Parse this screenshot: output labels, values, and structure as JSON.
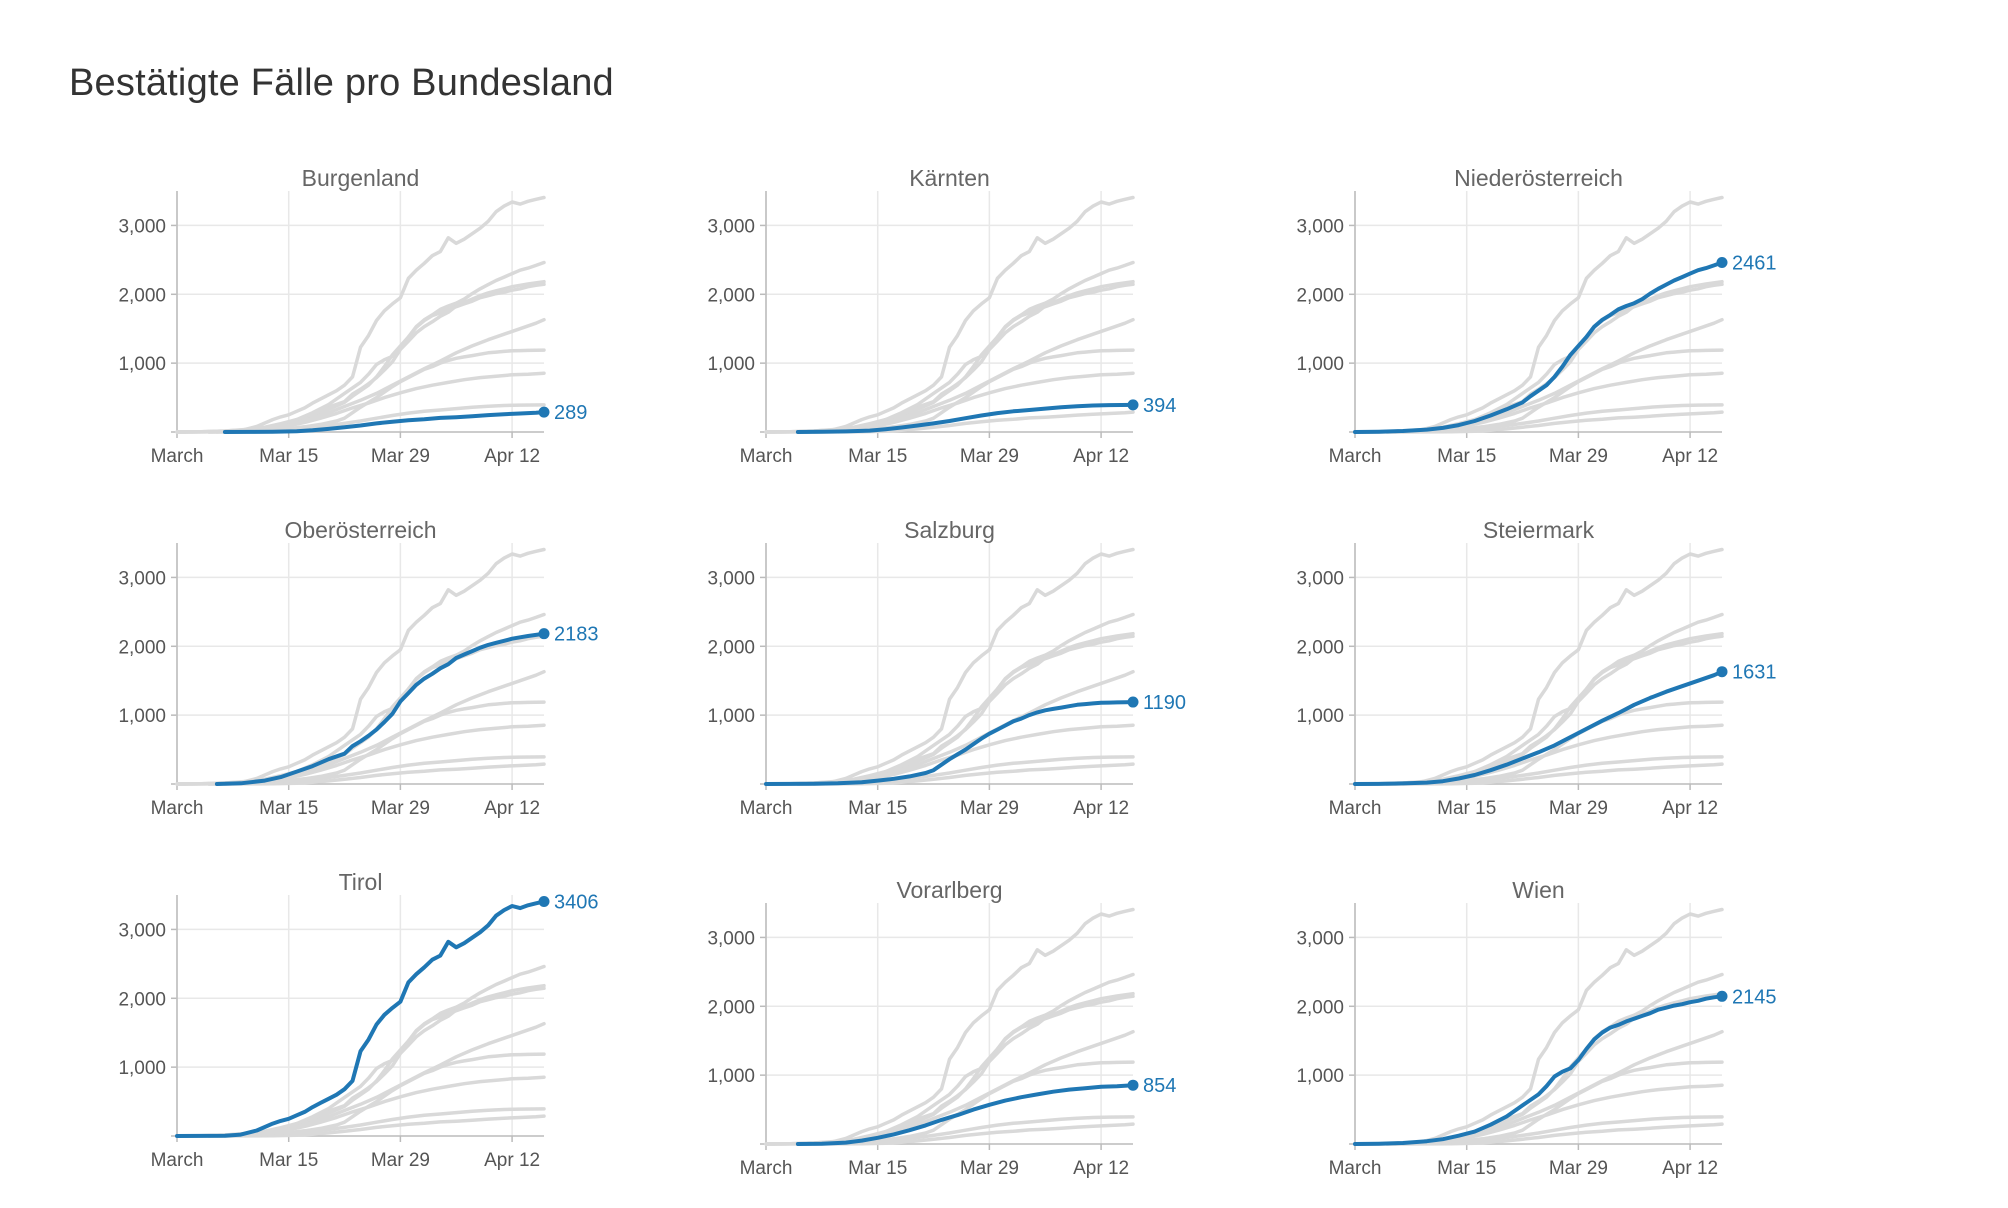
{
  "page": {
    "title": "Bestätigte Fälle pro Bundesland"
  },
  "colors": {
    "highlight": "#1f77b4",
    "context": "#d9d9d9",
    "gridline": "#e8e8e8",
    "axis": "#bbbbbb"
  },
  "chart_data": {
    "type": "line",
    "layout": "small-multiples 3x3",
    "x_unit": "day of year 2020",
    "x_ticks": [
      {
        "x": 1,
        "label": "March"
      },
      {
        "x": 15,
        "label": "Mar 15"
      },
      {
        "x": 29,
        "label": "Mar 29"
      },
      {
        "x": 43,
        "label": "Apr 12"
      }
    ],
    "xlim": [
      1,
      47
    ],
    "ylim": [
      0,
      3500
    ],
    "y_ticks": [
      {
        "y": 1000,
        "label": "1,000"
      },
      {
        "y": 2000,
        "label": "2,000"
      },
      {
        "y": 3000,
        "label": "3,000"
      }
    ],
    "grid": true,
    "series": [
      {
        "name": "Burgenland",
        "end_label": "289",
        "points": [
          [
            7,
            0
          ],
          [
            10,
            2
          ],
          [
            13,
            5
          ],
          [
            16,
            12
          ],
          [
            18,
            25
          ],
          [
            20,
            45
          ],
          [
            22,
            70
          ],
          [
            24,
            95
          ],
          [
            26,
            125
          ],
          [
            28,
            150
          ],
          [
            30,
            170
          ],
          [
            32,
            185
          ],
          [
            34,
            205
          ],
          [
            36,
            215
          ],
          [
            38,
            230
          ],
          [
            40,
            245
          ],
          [
            42,
            258
          ],
          [
            44,
            268
          ],
          [
            46,
            280
          ],
          [
            47,
            289
          ]
        ]
      },
      {
        "name": "Kärnten",
        "end_label": "394",
        "points": [
          [
            5,
            0
          ],
          [
            8,
            3
          ],
          [
            11,
            8
          ],
          [
            14,
            20
          ],
          [
            16,
            40
          ],
          [
            18,
            65
          ],
          [
            20,
            95
          ],
          [
            22,
            125
          ],
          [
            24,
            160
          ],
          [
            26,
            200
          ],
          [
            28,
            240
          ],
          [
            30,
            275
          ],
          [
            32,
            300
          ],
          [
            34,
            320
          ],
          [
            36,
            340
          ],
          [
            38,
            360
          ],
          [
            40,
            375
          ],
          [
            42,
            385
          ],
          [
            44,
            390
          ],
          [
            47,
            394
          ]
        ]
      },
      {
        "name": "Niederösterreich",
        "end_label": "2461",
        "points": [
          [
            1,
            0
          ],
          [
            4,
            5
          ],
          [
            7,
            15
          ],
          [
            10,
            35
          ],
          [
            12,
            60
          ],
          [
            14,
            100
          ],
          [
            16,
            160
          ],
          [
            18,
            240
          ],
          [
            20,
            330
          ],
          [
            22,
            430
          ],
          [
            23,
            520
          ],
          [
            24,
            600
          ],
          [
            25,
            680
          ],
          [
            26,
            800
          ],
          [
            27,
            950
          ],
          [
            28,
            1120
          ],
          [
            29,
            1250
          ],
          [
            30,
            1380
          ],
          [
            31,
            1530
          ],
          [
            32,
            1630
          ],
          [
            33,
            1700
          ],
          [
            34,
            1780
          ],
          [
            35,
            1830
          ],
          [
            36,
            1870
          ],
          [
            37,
            1930
          ],
          [
            38,
            2010
          ],
          [
            39,
            2080
          ],
          [
            40,
            2140
          ],
          [
            41,
            2200
          ],
          [
            42,
            2250
          ],
          [
            43,
            2300
          ],
          [
            44,
            2350
          ],
          [
            45,
            2380
          ],
          [
            46,
            2420
          ],
          [
            47,
            2461
          ]
        ]
      },
      {
        "name": "Oberösterreich",
        "end_label": "2183",
        "points": [
          [
            6,
            0
          ],
          [
            9,
            10
          ],
          [
            12,
            50
          ],
          [
            14,
            100
          ],
          [
            16,
            180
          ],
          [
            18,
            260
          ],
          [
            20,
            360
          ],
          [
            22,
            440
          ],
          [
            23,
            550
          ],
          [
            24,
            620
          ],
          [
            25,
            700
          ],
          [
            26,
            790
          ],
          [
            27,
            900
          ],
          [
            28,
            1020
          ],
          [
            29,
            1200
          ],
          [
            30,
            1320
          ],
          [
            31,
            1440
          ],
          [
            32,
            1530
          ],
          [
            33,
            1600
          ],
          [
            34,
            1680
          ],
          [
            35,
            1740
          ],
          [
            36,
            1830
          ],
          [
            37,
            1880
          ],
          [
            38,
            1930
          ],
          [
            39,
            1980
          ],
          [
            40,
            2020
          ],
          [
            41,
            2050
          ],
          [
            42,
            2080
          ],
          [
            43,
            2110
          ],
          [
            44,
            2130
          ],
          [
            45,
            2150
          ],
          [
            46,
            2165
          ],
          [
            47,
            2183
          ]
        ]
      },
      {
        "name": "Salzburg",
        "end_label": "1190",
        "points": [
          [
            1,
            0
          ],
          [
            4,
            2
          ],
          [
            7,
            5
          ],
          [
            10,
            10
          ],
          [
            13,
            25
          ],
          [
            15,
            50
          ],
          [
            17,
            75
          ],
          [
            19,
            110
          ],
          [
            21,
            160
          ],
          [
            22,
            200
          ],
          [
            23,
            280
          ],
          [
            24,
            360
          ],
          [
            25,
            430
          ],
          [
            26,
            500
          ],
          [
            27,
            580
          ],
          [
            28,
            660
          ],
          [
            29,
            730
          ],
          [
            30,
            790
          ],
          [
            31,
            850
          ],
          [
            32,
            910
          ],
          [
            33,
            950
          ],
          [
            34,
            1000
          ],
          [
            35,
            1040
          ],
          [
            36,
            1070
          ],
          [
            37,
            1090
          ],
          [
            38,
            1110
          ],
          [
            39,
            1130
          ],
          [
            40,
            1150
          ],
          [
            41,
            1160
          ],
          [
            42,
            1170
          ],
          [
            43,
            1180
          ],
          [
            44,
            1182
          ],
          [
            45,
            1185
          ],
          [
            46,
            1188
          ],
          [
            47,
            1190
          ]
        ]
      },
      {
        "name": "Steiermark",
        "end_label": "1631",
        "points": [
          [
            1,
            0
          ],
          [
            4,
            2
          ],
          [
            7,
            8
          ],
          [
            10,
            20
          ],
          [
            12,
            40
          ],
          [
            14,
            80
          ],
          [
            16,
            130
          ],
          [
            18,
            200
          ],
          [
            20,
            280
          ],
          [
            22,
            370
          ],
          [
            24,
            460
          ],
          [
            26,
            560
          ],
          [
            28,
            680
          ],
          [
            30,
            800
          ],
          [
            32,
            920
          ],
          [
            34,
            1030
          ],
          [
            36,
            1150
          ],
          [
            38,
            1250
          ],
          [
            40,
            1340
          ],
          [
            42,
            1420
          ],
          [
            44,
            1500
          ],
          [
            46,
            1580
          ],
          [
            47,
            1631
          ]
        ]
      },
      {
        "name": "Tirol",
        "end_label": "3406",
        "points": [
          [
            1,
            0
          ],
          [
            4,
            2
          ],
          [
            7,
            5
          ],
          [
            9,
            20
          ],
          [
            11,
            80
          ],
          [
            13,
            180
          ],
          [
            14,
            220
          ],
          [
            15,
            250
          ],
          [
            16,
            300
          ],
          [
            17,
            350
          ],
          [
            18,
            420
          ],
          [
            19,
            480
          ],
          [
            20,
            540
          ],
          [
            21,
            600
          ],
          [
            22,
            680
          ],
          [
            23,
            800
          ],
          [
            24,
            1230
          ],
          [
            25,
            1400
          ],
          [
            26,
            1620
          ],
          [
            27,
            1760
          ],
          [
            28,
            1860
          ],
          [
            29,
            1950
          ],
          [
            30,
            2230
          ],
          [
            31,
            2350
          ],
          [
            32,
            2450
          ],
          [
            33,
            2560
          ],
          [
            34,
            2620
          ],
          [
            35,
            2820
          ],
          [
            36,
            2740
          ],
          [
            37,
            2800
          ],
          [
            38,
            2880
          ],
          [
            39,
            2960
          ],
          [
            40,
            3060
          ],
          [
            41,
            3200
          ],
          [
            42,
            3280
          ],
          [
            43,
            3340
          ],
          [
            44,
            3310
          ],
          [
            45,
            3350
          ],
          [
            46,
            3380
          ],
          [
            47,
            3406
          ]
        ]
      },
      {
        "name": "Vorarlberg",
        "end_label": "854",
        "points": [
          [
            5,
            0
          ],
          [
            8,
            5
          ],
          [
            11,
            20
          ],
          [
            13,
            50
          ],
          [
            15,
            90
          ],
          [
            17,
            140
          ],
          [
            19,
            200
          ],
          [
            21,
            270
          ],
          [
            23,
            350
          ],
          [
            25,
            420
          ],
          [
            27,
            500
          ],
          [
            29,
            570
          ],
          [
            31,
            630
          ],
          [
            33,
            680
          ],
          [
            35,
            720
          ],
          [
            37,
            760
          ],
          [
            39,
            790
          ],
          [
            41,
            810
          ],
          [
            43,
            830
          ],
          [
            45,
            840
          ],
          [
            47,
            854
          ]
        ]
      },
      {
        "name": "Wien",
        "end_label": "2145",
        "points": [
          [
            1,
            0
          ],
          [
            4,
            5
          ],
          [
            7,
            15
          ],
          [
            10,
            40
          ],
          [
            12,
            70
          ],
          [
            14,
            120
          ],
          [
            16,
            180
          ],
          [
            18,
            280
          ],
          [
            20,
            400
          ],
          [
            22,
            560
          ],
          [
            24,
            720
          ],
          [
            25,
            840
          ],
          [
            26,
            980
          ],
          [
            27,
            1050
          ],
          [
            28,
            1100
          ],
          [
            29,
            1220
          ],
          [
            30,
            1380
          ],
          [
            31,
            1520
          ],
          [
            32,
            1620
          ],
          [
            33,
            1690
          ],
          [
            34,
            1730
          ],
          [
            35,
            1780
          ],
          [
            36,
            1820
          ],
          [
            37,
            1860
          ],
          [
            38,
            1900
          ],
          [
            39,
            1950
          ],
          [
            40,
            1980
          ],
          [
            41,
            2010
          ],
          [
            42,
            2030
          ],
          [
            43,
            2060
          ],
          [
            44,
            2080
          ],
          [
            45,
            2110
          ],
          [
            46,
            2130
          ],
          [
            47,
            2145
          ]
        ]
      }
    ]
  }
}
